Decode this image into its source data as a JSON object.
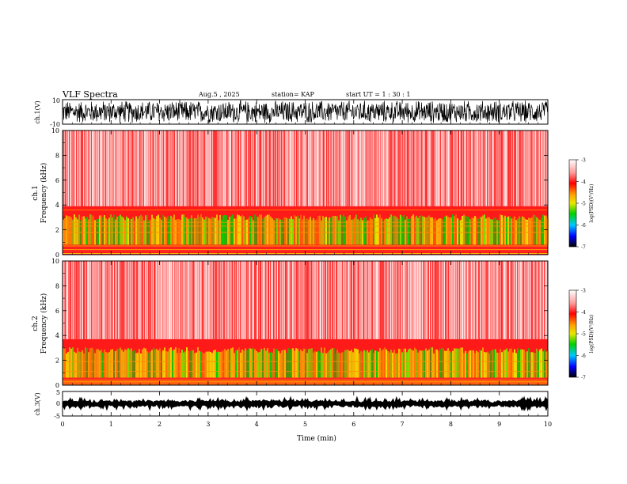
{
  "header": {
    "title": "VLF Spectra",
    "date": "Aug.5  , 2025",
    "station": "station= KAP",
    "start": "start  UT  =   1  : 30 : 1"
  },
  "chart_data": [
    {
      "type": "line",
      "name": "ch1-waveform",
      "ylabel": "ch.1(V)",
      "ylim": [
        -10,
        10
      ],
      "yticks": [
        "10",
        "-10"
      ],
      "xlim": [
        0,
        10
      ],
      "description_values": {
        "min": -10,
        "max": 10
      }
    },
    {
      "type": "heatmap",
      "name": "ch1-spectrogram",
      "ylabel": "ch.1\nFrequency  (kHz)",
      "ylabel_top": "ch.1",
      "ylabel_main": "Frequency  (kHz)",
      "ylim": [
        0,
        10
      ],
      "yticks": [
        "0",
        "2",
        "4",
        "6",
        "8",
        "10"
      ],
      "xlim": [
        0,
        10
      ],
      "band_kHz": {
        "strong": [
          0.8,
          3.0
        ],
        "lines": [
          1.8,
          2.3,
          2.6,
          3.6
        ]
      },
      "colorbar": {
        "label": "log(PSD)(V²/Hz)",
        "ticks": [
          "-3",
          "-4",
          "-5",
          "-6",
          "-7"
        ],
        "range": [
          -7,
          -3
        ]
      }
    },
    {
      "type": "heatmap",
      "name": "ch2-spectrogram",
      "ylabel_top": "ch.2",
      "ylabel_main": "Frequency  (kHz)",
      "ylim": [
        0,
        10
      ],
      "yticks": [
        "0",
        "2",
        "4",
        "6",
        "8",
        "10"
      ],
      "xlim": [
        0,
        10
      ],
      "band_kHz": {
        "strong": [
          0.6,
          2.8
        ],
        "lines": [
          1.9,
          1.1,
          0.3
        ]
      },
      "colorbar": {
        "label": "log(PSD)(V²/Hz)",
        "ticks": [
          "-3",
          "-4",
          "-5",
          "-6",
          "-7"
        ],
        "range": [
          -7,
          -3
        ]
      }
    },
    {
      "type": "line",
      "name": "ch3-waveform",
      "ylabel": "ch.3(V)",
      "ylim": [
        -5,
        5
      ],
      "yticks": [
        "5",
        "0",
        "-5"
      ],
      "xlim": [
        0,
        10
      ],
      "level": 0
    }
  ],
  "xaxis": {
    "label": "Time  (min)",
    "ticks": [
      "0",
      "1",
      "2",
      "3",
      "4",
      "5",
      "6",
      "7",
      "8",
      "9",
      "10"
    ]
  }
}
